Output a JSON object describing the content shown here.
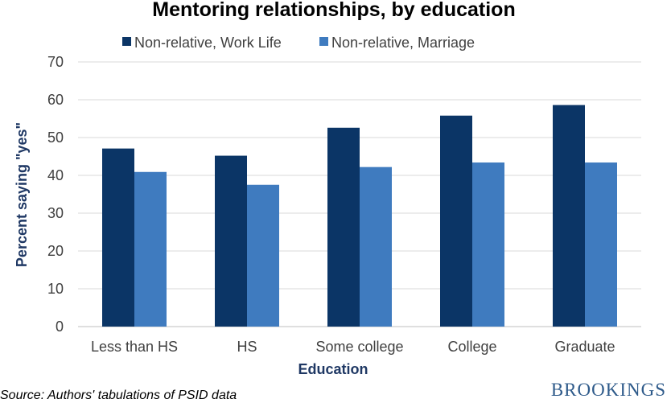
{
  "chart_data": {
    "type": "bar",
    "title": "Mentoring relationships, by education",
    "xlabel": "Education",
    "ylabel": "Percent saying \"yes\"",
    "categories": [
      "Less than HS",
      "HS",
      "Some college",
      "College",
      "Graduate"
    ],
    "series": [
      {
        "name": "Non-relative, Work Life",
        "color": "#0b3566",
        "values": [
          47.1,
          45.2,
          52.6,
          55.8,
          58.6
        ]
      },
      {
        "name": "Non-relative, Marriage",
        "color": "#3f7bbf",
        "values": [
          40.9,
          37.5,
          42.2,
          43.4,
          43.4
        ]
      }
    ],
    "ylim": [
      0,
      70
    ],
    "yticks": [
      0,
      10,
      20,
      30,
      40,
      50,
      60,
      70
    ],
    "grid": true,
    "legend": "top"
  },
  "footer": {
    "source": "Source: Authors' tabulations of PSID data",
    "brand": "BROOKINGS"
  }
}
